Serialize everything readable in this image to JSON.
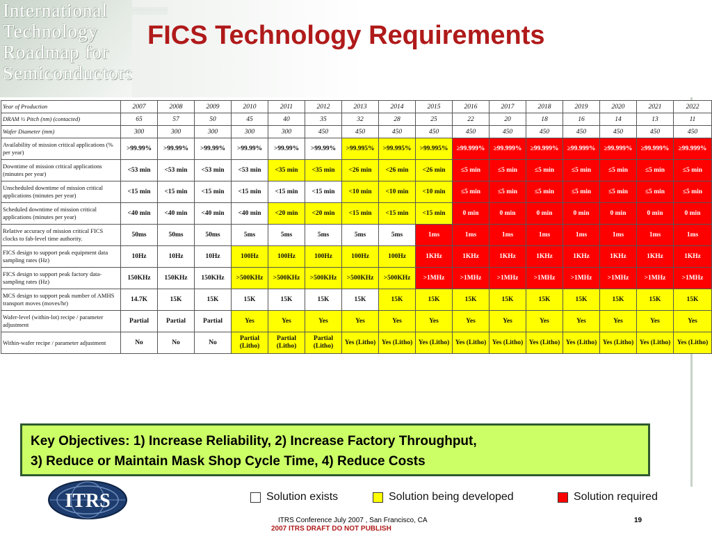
{
  "watermark": {
    "lines": [
      "International",
      "Technology",
      "Roadmap for",
      "Semiconductors"
    ]
  },
  "title": "FICS Technology Requirements",
  "table": {
    "rows": [
      {
        "label": "Year of Production",
        "size": "s",
        "cells": [
          [
            "2007",
            "w"
          ],
          [
            "2008",
            "w"
          ],
          [
            "2009",
            "w"
          ],
          [
            "2010",
            "w"
          ],
          [
            "2011",
            "w"
          ],
          [
            "2012",
            "w"
          ],
          [
            "2013",
            "w"
          ],
          [
            "2014",
            "w"
          ],
          [
            "2015",
            "w"
          ],
          [
            "2016",
            "w"
          ],
          [
            "2017",
            "w"
          ],
          [
            "2018",
            "w"
          ],
          [
            "2019",
            "w"
          ],
          [
            "2020",
            "w"
          ],
          [
            "2021",
            "w"
          ],
          [
            "2022",
            "w"
          ]
        ]
      },
      {
        "label": "DRAM ½ Pitch (nm) (contacted)",
        "size": "s",
        "cells": [
          [
            "65",
            "w"
          ],
          [
            "57",
            "w"
          ],
          [
            "50",
            "w"
          ],
          [
            "45",
            "w"
          ],
          [
            "40",
            "w"
          ],
          [
            "35",
            "w"
          ],
          [
            "32",
            "w"
          ],
          [
            "28",
            "w"
          ],
          [
            "25",
            "w"
          ],
          [
            "22",
            "w"
          ],
          [
            "20",
            "w"
          ],
          [
            "18",
            "w"
          ],
          [
            "16",
            "w"
          ],
          [
            "14",
            "w"
          ],
          [
            "13",
            "w"
          ],
          [
            "11",
            "w"
          ]
        ]
      },
      {
        "label": "Wafer Diameter (mm)",
        "size": "s",
        "cells": [
          [
            "300",
            "w"
          ],
          [
            "300",
            "w"
          ],
          [
            "300",
            "w"
          ],
          [
            "300",
            "w"
          ],
          [
            "300",
            "w"
          ],
          [
            "450",
            "w"
          ],
          [
            "450",
            "w"
          ],
          [
            "450",
            "w"
          ],
          [
            "450",
            "w"
          ],
          [
            "450",
            "w"
          ],
          [
            "450",
            "w"
          ],
          [
            "450",
            "w"
          ],
          [
            "450",
            "w"
          ],
          [
            "450",
            "w"
          ],
          [
            "450",
            "w"
          ],
          [
            "450",
            "w"
          ]
        ]
      },
      {
        "label": "Availability of mission critical applications (% per year)",
        "size": "m",
        "cells": [
          [
            ">99.99%",
            "w"
          ],
          [
            ">99.99%",
            "w"
          ],
          [
            ">99.99%",
            "w"
          ],
          [
            ">99.99%",
            "w"
          ],
          [
            ">99.99%",
            "w"
          ],
          [
            ">99.99%",
            "w"
          ],
          [
            ">99.995%",
            "y"
          ],
          [
            ">99.995%",
            "y"
          ],
          [
            ">99.995%",
            "y"
          ],
          [
            "≥99.999%",
            "r"
          ],
          [
            "≥99.999%",
            "r"
          ],
          [
            "≥99.999%",
            "r"
          ],
          [
            "≥99.999%",
            "r"
          ],
          [
            "≥99.999%",
            "r"
          ],
          [
            "≥99.999%",
            "r"
          ],
          [
            "≥99.999%",
            "r"
          ]
        ]
      },
      {
        "label": "Downtime of mission critical applications (minutes per year)",
        "size": "m",
        "cells": [
          [
            "<53 min",
            "w"
          ],
          [
            "<53 min",
            "w"
          ],
          [
            "<53 min",
            "w"
          ],
          [
            "<53 min",
            "w"
          ],
          [
            "<35 min",
            "y"
          ],
          [
            "<35 min",
            "y"
          ],
          [
            "<26 min",
            "y"
          ],
          [
            "<26 min",
            "y"
          ],
          [
            "<26 min",
            "y"
          ],
          [
            "≤5 min",
            "r"
          ],
          [
            "≤5 min",
            "r"
          ],
          [
            "≤5 min",
            "r"
          ],
          [
            "≤5 min",
            "r"
          ],
          [
            "≤5 min",
            "r"
          ],
          [
            "≤5 min",
            "r"
          ],
          [
            "≤5 min",
            "r"
          ]
        ]
      },
      {
        "label": "Unscheduled downtime of mission critical applications (minutes per year)",
        "size": "m",
        "cells": [
          [
            "<15 min",
            "w"
          ],
          [
            "<15 min",
            "w"
          ],
          [
            "<15 min",
            "w"
          ],
          [
            "<15 min",
            "w"
          ],
          [
            "<15 min",
            "w"
          ],
          [
            "<15 min",
            "w"
          ],
          [
            "<10 min",
            "y"
          ],
          [
            "<10 min",
            "y"
          ],
          [
            "<10 min",
            "y"
          ],
          [
            "≤5 min",
            "r"
          ],
          [
            "≤5 min",
            "r"
          ],
          [
            "≤5 min",
            "r"
          ],
          [
            "≤5 min",
            "r"
          ],
          [
            "≤5 min",
            "r"
          ],
          [
            "≤5 min",
            "r"
          ],
          [
            "≤5 min",
            "r"
          ]
        ]
      },
      {
        "label": "Scheduled downtime of mission critical applications (minutes per year)",
        "size": "m",
        "cells": [
          [
            "<40 min",
            "w"
          ],
          [
            "<40 min",
            "w"
          ],
          [
            "<40 min",
            "w"
          ],
          [
            "<40 min",
            "w"
          ],
          [
            "<20 min",
            "y"
          ],
          [
            "<20 min",
            "y"
          ],
          [
            "<15 min",
            "y"
          ],
          [
            "<15 min",
            "y"
          ],
          [
            "<15 min",
            "y"
          ],
          [
            "0 min",
            "r"
          ],
          [
            "0 min",
            "r"
          ],
          [
            "0 min",
            "r"
          ],
          [
            "0 min",
            "r"
          ],
          [
            "0 min",
            "r"
          ],
          [
            "0 min",
            "r"
          ],
          [
            "0 min",
            "r"
          ]
        ]
      },
      {
        "label": "Relative accuracy of mission critical FICS clocks to fab-level time authority.",
        "size": "m",
        "cells": [
          [
            "50ms",
            "w"
          ],
          [
            "50ms",
            "w"
          ],
          [
            "50ms",
            "w"
          ],
          [
            "5ms",
            "w"
          ],
          [
            "5ms",
            "w"
          ],
          [
            "5ms",
            "w"
          ],
          [
            "5ms",
            "w"
          ],
          [
            "5ms",
            "w"
          ],
          [
            "1ms",
            "r"
          ],
          [
            "1ms",
            "r"
          ],
          [
            "1ms",
            "r"
          ],
          [
            "1ms",
            "r"
          ],
          [
            "1ms",
            "r"
          ],
          [
            "1ms",
            "r"
          ],
          [
            "1ms",
            "r"
          ],
          [
            "1ms",
            "r"
          ]
        ]
      },
      {
        "label": "FICS design to support peak equipment data sampling rates (Hz)",
        "size": "m",
        "cells": [
          [
            "10Hz",
            "w"
          ],
          [
            "10Hz",
            "w"
          ],
          [
            "10Hz",
            "w"
          ],
          [
            "100Hz",
            "y"
          ],
          [
            "100Hz",
            "y"
          ],
          [
            "100Hz",
            "y"
          ],
          [
            "100Hz",
            "y"
          ],
          [
            "100Hz",
            "y"
          ],
          [
            "1KHz",
            "r"
          ],
          [
            "1KHz",
            "r"
          ],
          [
            "1KHz",
            "r"
          ],
          [
            "1KHz",
            "r"
          ],
          [
            "1KHz",
            "r"
          ],
          [
            "1KHz",
            "r"
          ],
          [
            "1KHz",
            "r"
          ],
          [
            "1KHz",
            "r"
          ]
        ]
      },
      {
        "label": "FICS design to support peak factory data-sampling rates (Hz)",
        "size": "m",
        "cells": [
          [
            "150KHz",
            "w"
          ],
          [
            "150KHz",
            "w"
          ],
          [
            "150KHz",
            "w"
          ],
          [
            ">500KHz",
            "y"
          ],
          [
            ">500KHz",
            "y"
          ],
          [
            ">500KHz",
            "y"
          ],
          [
            ">500KHz",
            "y"
          ],
          [
            ">500KHz",
            "y"
          ],
          [
            ">1MHz",
            "r"
          ],
          [
            ">1MHz",
            "r"
          ],
          [
            ">1MHz",
            "r"
          ],
          [
            ">1MHz",
            "r"
          ],
          [
            ">1MHz",
            "r"
          ],
          [
            ">1MHz",
            "r"
          ],
          [
            ">1MHz",
            "r"
          ],
          [
            ">1MHz",
            "r"
          ]
        ]
      },
      {
        "label": "MCS design to support peak number of AMHS transport moves (moves/hr)",
        "size": "m",
        "cells": [
          [
            "14.7K",
            "w"
          ],
          [
            "15K",
            "w"
          ],
          [
            "15K",
            "w"
          ],
          [
            "15K",
            "w"
          ],
          [
            "15K",
            "w"
          ],
          [
            "15K",
            "w"
          ],
          [
            "15K",
            "w"
          ],
          [
            "15K",
            "y"
          ],
          [
            "15K",
            "y"
          ],
          [
            "15K",
            "y"
          ],
          [
            "15K",
            "y"
          ],
          [
            "15K",
            "y"
          ],
          [
            "15K",
            "y"
          ],
          [
            "15K",
            "y"
          ],
          [
            "15K",
            "y"
          ],
          [
            "15K",
            "y"
          ]
        ]
      },
      {
        "label": "Wafer-level (within-lot) recipe / parameter adjustment",
        "size": "m",
        "cells": [
          [
            "Partial",
            "w"
          ],
          [
            "Partial",
            "w"
          ],
          [
            "Partial",
            "w"
          ],
          [
            "Yes",
            "y"
          ],
          [
            "Yes",
            "y"
          ],
          [
            "Yes",
            "y"
          ],
          [
            "Yes",
            "y"
          ],
          [
            "Yes",
            "y"
          ],
          [
            "Yes",
            "y"
          ],
          [
            "Yes",
            "y"
          ],
          [
            "Yes",
            "y"
          ],
          [
            "Yes",
            "y"
          ],
          [
            "Yes",
            "y"
          ],
          [
            "Yes",
            "y"
          ],
          [
            "Yes",
            "y"
          ],
          [
            "Yes",
            "y"
          ]
        ]
      },
      {
        "label": "Within-wafer recipe / parameter adjustment",
        "size": "m",
        "cells": [
          [
            "No",
            "w"
          ],
          [
            "No",
            "w"
          ],
          [
            "No",
            "w"
          ],
          [
            "Partial (Litho)",
            "y"
          ],
          [
            "Partial (Litho)",
            "y"
          ],
          [
            "Partial (Litho)",
            "y"
          ],
          [
            "Yes (Litho)",
            "y"
          ],
          [
            "Yes (Litho)",
            "y"
          ],
          [
            "Yes (Litho)",
            "y"
          ],
          [
            "Yes (Litho)",
            "y"
          ],
          [
            "Yes (Litho)",
            "y"
          ],
          [
            "Yes (Litho)",
            "y"
          ],
          [
            "Yes (Litho)",
            "y"
          ],
          [
            "Yes (Litho)",
            "y"
          ],
          [
            "Yes (Litho)",
            "y"
          ],
          [
            "Yes (Litho)",
            "y"
          ]
        ]
      }
    ]
  },
  "key_objectives": {
    "line1": "Key Objectives: 1) Increase Reliability, 2) Increase Factory Throughput,",
    "line2": "3) Reduce or Maintain Mask Shop Cycle Time, 4) Reduce Costs"
  },
  "legend": {
    "items": [
      {
        "label": "Solution exists",
        "color": "#ffffff"
      },
      {
        "label": "Solution being developed",
        "color": "#ffff00"
      },
      {
        "label": "Solution required",
        "color": "#ff0000"
      }
    ]
  },
  "logo": {
    "text": "ITRS"
  },
  "footer": {
    "conference": "ITRS Conference July 2007 , San Francisco, CA",
    "draft": "2007 ITRS DRAFT DO NOT PUBLISH",
    "page": "19"
  },
  "colors": {
    "title": "#b01a1a",
    "objectives_bg": "#ccff66",
    "yellow": "#ffff00",
    "red": "#ff0000"
  }
}
